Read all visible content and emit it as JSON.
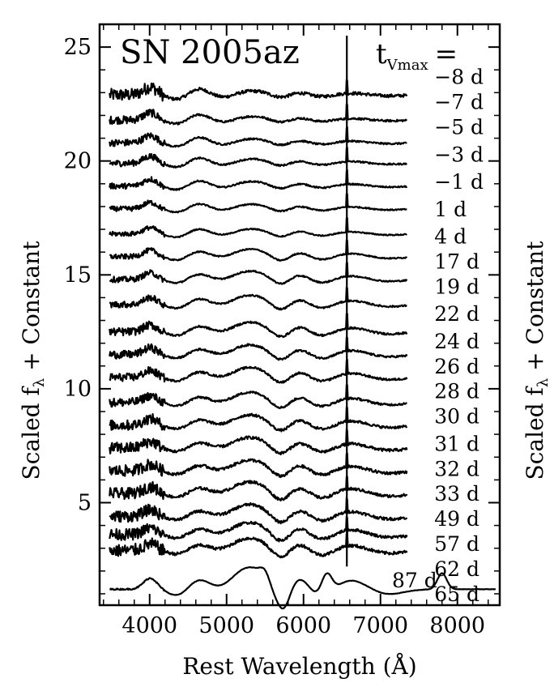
{
  "chart_data": {
    "type": "line",
    "title": "SN 2005az",
    "epoch_header": {
      "t": "t",
      "sub": "Vmax",
      "eq": "="
    },
    "xlabel": "Rest Wavelength (Å)",
    "ylabel": {
      "main": "Scaled f",
      "sub": "λ",
      "rest": " + Constant"
    },
    "xlim": [
      3350,
      8550
    ],
    "ylim": [
      0.5,
      26.0
    ],
    "x_ticks": [
      4000,
      5000,
      6000,
      7000,
      8000
    ],
    "x_tick_labels": [
      "4000",
      "5000",
      "6000",
      "7000",
      "8000"
    ],
    "y_ticks": [
      5,
      10,
      15,
      20,
      25
    ],
    "y_tick_labels": [
      "5",
      "10",
      "15",
      "20",
      "25"
    ],
    "grid": false,
    "colors": {
      "line": "#000000",
      "background": "#ffffff"
    },
    "line_feature_x": 6563,
    "features": [
      {
        "x": 4010,
        "w": 90,
        "d": 1.0
      },
      {
        "x": 4400,
        "w": 140,
        "d": -0.8
      },
      {
        "x": 4620,
        "w": 160,
        "d": 1.0
      },
      {
        "x": 4950,
        "w": 170,
        "d": -0.6
      },
      {
        "x": 5280,
        "w": 260,
        "d": 1.1
      },
      {
        "x": 5700,
        "w": 120,
        "d": -0.9
      },
      {
        "x": 5950,
        "w": 130,
        "d": 0.6
      },
      {
        "x": 6250,
        "w": 160,
        "d": -0.6
      },
      {
        "x": 6600,
        "w": 250,
        "d": 0.5
      },
      {
        "x": 7050,
        "w": 220,
        "d": -0.3
      }
    ],
    "series": [
      {
        "label": "−8 d",
        "offset": 22.9,
        "x_start": 3480,
        "x_end": 7350,
        "amp": 0.35,
        "noise": 0.55,
        "evolved": 0.0,
        "label_x": 7700,
        "label_y": 23.7
      },
      {
        "label": "−7 d",
        "offset": 21.8,
        "x_start": 3480,
        "x_end": 7350,
        "amp": 0.32,
        "noise": 0.35,
        "evolved": 0.0,
        "label_x": 7700,
        "label_y": 22.6
      },
      {
        "label": "−5 d",
        "offset": 20.8,
        "x_start": 3480,
        "x_end": 7350,
        "amp": 0.32,
        "noise": 0.3,
        "evolved": 0.05,
        "label_x": 7700,
        "label_y": 21.5
      },
      {
        "label": "−3 d",
        "offset": 19.9,
        "x_start": 3480,
        "x_end": 7350,
        "amp": 0.32,
        "noise": 0.28,
        "evolved": 0.1,
        "label_x": 7700,
        "label_y": 20.3
      },
      {
        "label": "−1 d",
        "offset": 18.9,
        "x_start": 3480,
        "x_end": 7350,
        "amp": 0.32,
        "noise": 0.25,
        "evolved": 0.15,
        "label_x": 7700,
        "label_y": 19.1
      },
      {
        "label": "1 d",
        "offset": 17.9,
        "x_start": 3480,
        "x_end": 7350,
        "amp": 0.3,
        "noise": 0.22,
        "evolved": 0.2,
        "label_x": 7700,
        "label_y": 17.9
      },
      {
        "label": "4 d",
        "offset": 16.8,
        "x_start": 3480,
        "x_end": 7350,
        "amp": 0.3,
        "noise": 0.2,
        "evolved": 0.25,
        "label_x": 7700,
        "label_y": 16.7
      },
      {
        "label": "17 d",
        "offset": 15.8,
        "x_start": 3480,
        "x_end": 7350,
        "amp": 0.34,
        "noise": 0.22,
        "evolved": 0.55,
        "label_x": 7700,
        "label_y": 15.6
      },
      {
        "label": "19 d",
        "offset": 14.8,
        "x_start": 3480,
        "x_end": 7350,
        "amp": 0.36,
        "noise": 0.25,
        "evolved": 0.6,
        "label_x": 7700,
        "label_y": 14.5
      },
      {
        "label": "22 d",
        "offset": 13.7,
        "x_start": 3480,
        "x_end": 7350,
        "amp": 0.38,
        "noise": 0.28,
        "evolved": 0.65,
        "label_x": 7700,
        "label_y": 13.3
      },
      {
        "label": "24 d",
        "offset": 12.5,
        "x_start": 3480,
        "x_end": 7350,
        "amp": 0.38,
        "noise": 0.35,
        "evolved": 0.7,
        "label_x": 7700,
        "label_y": 12.1
      },
      {
        "label": "26 d",
        "offset": 11.5,
        "x_start": 3480,
        "x_end": 7350,
        "amp": 0.38,
        "noise": 0.35,
        "evolved": 0.72,
        "label_x": 7700,
        "label_y": 11.0
      },
      {
        "label": "28 d",
        "offset": 10.5,
        "x_start": 3480,
        "x_end": 7350,
        "amp": 0.38,
        "noise": 0.35,
        "evolved": 0.75,
        "label_x": 7700,
        "label_y": 9.9
      },
      {
        "label": "30 d",
        "offset": 9.4,
        "x_start": 3480,
        "x_end": 7350,
        "amp": 0.38,
        "noise": 0.38,
        "evolved": 0.78,
        "label_x": 7700,
        "label_y": 8.8
      },
      {
        "label": "31 d",
        "offset": 8.4,
        "x_start": 3480,
        "x_end": 7350,
        "amp": 0.38,
        "noise": 0.45,
        "evolved": 0.8,
        "label_x": 7700,
        "label_y": 7.6
      },
      {
        "label": "32 d",
        "offset": 7.4,
        "x_start": 3480,
        "x_end": 7350,
        "amp": 0.38,
        "noise": 0.5,
        "evolved": 0.82,
        "label_x": 7700,
        "label_y": 6.5
      },
      {
        "label": "33 d",
        "offset": 6.4,
        "x_start": 3480,
        "x_end": 7350,
        "amp": 0.38,
        "noise": 0.5,
        "evolved": 0.84,
        "label_x": 7700,
        "label_y": 5.4
      },
      {
        "label": "49 d",
        "offset": 5.4,
        "x_start": 3480,
        "x_end": 7350,
        "amp": 0.4,
        "noise": 0.5,
        "evolved": 0.9,
        "label_x": 7700,
        "label_y": 4.3
      },
      {
        "label": "57 d",
        "offset": 4.4,
        "x_start": 3480,
        "x_end": 7350,
        "amp": 0.4,
        "noise": 0.5,
        "evolved": 0.92,
        "label_x": 7700,
        "label_y": 3.2
      },
      {
        "label": "62 d",
        "offset": 3.6,
        "x_start": 3480,
        "x_end": 7350,
        "amp": 0.4,
        "noise": 0.5,
        "evolved": 0.95,
        "label_x": 7700,
        "label_y": 2.1
      },
      {
        "label": "65 d",
        "offset": 2.9,
        "x_start": 3480,
        "x_end": 7350,
        "amp": 0.4,
        "noise": 0.55,
        "evolved": 0.97,
        "label_x": 7700,
        "label_y": 1.0
      },
      {
        "label": "87 d",
        "offset": 1.2,
        "x_start": 3480,
        "x_end": 8500,
        "amp": 0.7,
        "noise": 0.06,
        "evolved": 1.0,
        "label_x": 7150,
        "label_y": 1.6
      }
    ]
  }
}
